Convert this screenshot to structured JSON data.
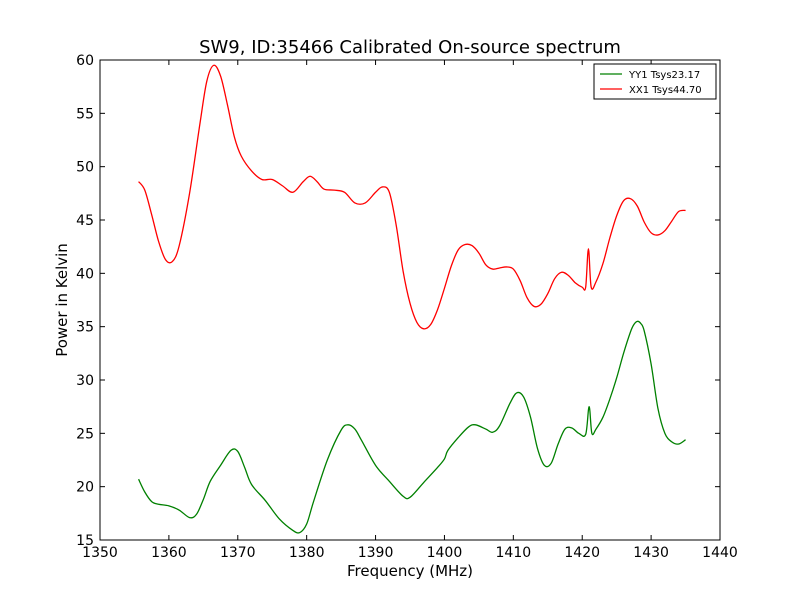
{
  "chart_data": {
    "type": "line",
    "title": "SW9, ID:35466 Calibrated On-source spectrum",
    "xlabel": "Frequency (MHz)",
    "ylabel": "Power in Kelvin",
    "xlim": [
      1350,
      1440
    ],
    "ylim": [
      15,
      60
    ],
    "xticks": [
      "1350",
      "1360",
      "1370",
      "1380",
      "1390",
      "1400",
      "1410",
      "1420",
      "1430",
      "1440"
    ],
    "yticks": [
      "15",
      "20",
      "25",
      "30",
      "35",
      "40",
      "45",
      "50",
      "55",
      "60"
    ],
    "grid": false,
    "legend_position": "top-right",
    "series": [
      {
        "name": "YY1 Tsys23.17",
        "color": "#008000",
        "x": [
          1355.6,
          1356.5,
          1357.5,
          1358.5,
          1360,
          1361.5,
          1363,
          1364,
          1365,
          1366,
          1367.5,
          1369,
          1370,
          1371,
          1372,
          1374,
          1376,
          1378,
          1379,
          1380,
          1381,
          1383,
          1385,
          1386,
          1387,
          1388,
          1390,
          1392,
          1394,
          1395,
          1397,
          1399,
          1400,
          1400.5,
          1402,
          1403.5,
          1404.5,
          1406,
          1407,
          1408,
          1409.5,
          1410.5,
          1411.5,
          1412.5,
          1413.5,
          1414.5,
          1415.5,
          1416.5,
          1417.5,
          1418.5,
          1419.5,
          1420.5,
          1421,
          1421.4,
          1422,
          1423,
          1424,
          1425,
          1426,
          1427,
          1427.5,
          1428,
          1428.5,
          1429,
          1430,
          1431,
          1432,
          1433,
          1434,
          1435
        ],
        "y": [
          20.7,
          19.5,
          18.6,
          18.35,
          18.2,
          17.8,
          17.1,
          17.4,
          18.8,
          20.5,
          22.0,
          23.4,
          23.3,
          21.8,
          20.2,
          18.7,
          17.0,
          15.9,
          15.7,
          16.5,
          18.6,
          22.5,
          25.3,
          25.8,
          25.4,
          24.3,
          22.0,
          20.5,
          19.1,
          19.0,
          20.4,
          21.8,
          22.6,
          23.4,
          24.6,
          25.6,
          25.8,
          25.4,
          25.1,
          25.7,
          27.8,
          28.8,
          28.4,
          26.5,
          23.6,
          22.0,
          22.2,
          24.0,
          25.4,
          25.5,
          25.0,
          24.9,
          27.5,
          25.0,
          25.4,
          26.5,
          28.2,
          30.2,
          32.5,
          34.5,
          35.2,
          35.5,
          35.3,
          34.6,
          31.5,
          27.3,
          25.0,
          24.2,
          24.0,
          24.4
        ]
      },
      {
        "name": "XX1 Tsys44.70",
        "color": "#ff0000",
        "x": [
          1355.6,
          1356.5,
          1357.5,
          1358.5,
          1359.5,
          1360.5,
          1361.5,
          1363,
          1364.5,
          1365.5,
          1366.5,
          1367.5,
          1368.5,
          1369.5,
          1370.5,
          1372,
          1373.5,
          1375,
          1376.5,
          1378,
          1379.5,
          1380.5,
          1381.5,
          1382.5,
          1384,
          1385.5,
          1387,
          1388.5,
          1390,
          1391,
          1392,
          1393,
          1394,
          1395,
          1396,
          1397,
          1398,
          1399,
          1400,
          1401,
          1402,
          1403,
          1404,
          1405,
          1406,
          1407,
          1408,
          1409,
          1410,
          1411,
          1412,
          1413,
          1414,
          1415,
          1416,
          1417,
          1418,
          1419,
          1420,
          1420.5,
          1420.9,
          1421.3,
          1422,
          1423,
          1424,
          1425,
          1426,
          1427,
          1428,
          1429,
          1430,
          1431,
          1432,
          1433,
          1434,
          1435
        ],
        "y": [
          48.6,
          47.8,
          45.5,
          43.0,
          41.3,
          41.1,
          42.6,
          47.5,
          54.0,
          58.0,
          59.5,
          58.5,
          55.8,
          52.8,
          51.0,
          49.6,
          48.8,
          48.8,
          48.2,
          47.6,
          48.6,
          49.1,
          48.6,
          47.9,
          47.8,
          47.6,
          46.6,
          46.6,
          47.6,
          48.1,
          47.6,
          44.5,
          40.2,
          37.2,
          35.4,
          34.8,
          35.2,
          36.6,
          38.6,
          40.7,
          42.2,
          42.7,
          42.6,
          41.9,
          40.8,
          40.4,
          40.5,
          40.6,
          40.4,
          39.3,
          37.7,
          36.9,
          37.1,
          38.1,
          39.5,
          40.1,
          39.8,
          39.1,
          38.7,
          38.7,
          42.3,
          38.7,
          39.2,
          40.9,
          43.3,
          45.4,
          46.8,
          47.0,
          46.3,
          44.8,
          43.8,
          43.6,
          44.0,
          44.9,
          45.8,
          45.9
        ]
      }
    ]
  }
}
